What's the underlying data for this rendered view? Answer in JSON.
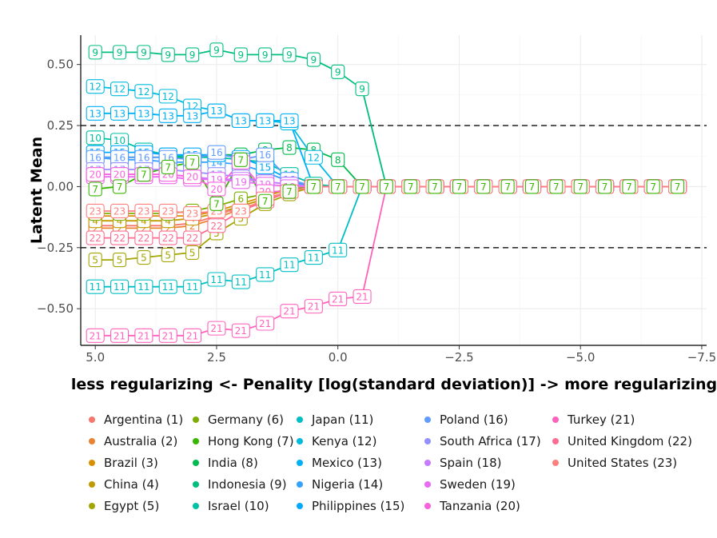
{
  "chart_data": {
    "type": "line",
    "xlabel": "less regularizing <- Penality [log(standard deviation)] -> more regularizing",
    "ylabel": "Latent Mean",
    "x_reversed": true,
    "xlim": [
      5.3,
      -7.6
    ],
    "ylim": [
      -0.65,
      0.62
    ],
    "x_ticks": [
      5,
      2.5,
      0,
      -2.5,
      -5,
      -7.5
    ],
    "x_tick_labels": [
      "5.0",
      "2.5",
      "0.0",
      "−2.5",
      "−5.0",
      "−7.5"
    ],
    "y_ticks": [
      0.5,
      0.25,
      0,
      -0.25,
      -0.5
    ],
    "y_tick_labels": [
      "0.50",
      "0.25",
      "0.00",
      "−0.25",
      "−0.50"
    ],
    "reference_lines": [
      0.25,
      -0.25
    ],
    "x": [
      5,
      4.5,
      4,
      3.5,
      3,
      2.5,
      2,
      1.5,
      1,
      0.5,
      0,
      -0.5,
      -1,
      -1.5,
      -2,
      -2.5,
      -3,
      -3.5,
      -4,
      -4.5,
      -5,
      -5.5,
      -6,
      -6.5,
      -7
    ],
    "series": [
      {
        "id": 1,
        "name": "Argentina (1)",
        "color": "#F8766D",
        "values": [
          -0.16,
          -0.16,
          -0.16,
          -0.16,
          -0.15,
          -0.12,
          -0.08,
          -0.05,
          -0.02,
          0,
          0,
          0,
          0,
          0,
          0,
          0,
          0,
          0,
          0,
          0,
          0,
          0,
          0,
          0,
          0
        ]
      },
      {
        "id": 2,
        "name": "Australia (2)",
        "color": "#EA8331",
        "values": [
          -0.17,
          -0.17,
          -0.17,
          -0.17,
          -0.16,
          -0.13,
          -0.09,
          -0.06,
          -0.02,
          0,
          0,
          0,
          0,
          0,
          0,
          0,
          0,
          0,
          0,
          0,
          0,
          0,
          0,
          0,
          0
        ]
      },
      {
        "id": 3,
        "name": "Brazil (3)",
        "color": "#D89000",
        "values": [
          -0.12,
          -0.12,
          -0.12,
          -0.12,
          -0.12,
          -0.1,
          -0.07,
          -0.04,
          -0.01,
          0,
          0,
          0,
          0,
          0,
          0,
          0,
          0,
          0,
          0,
          0,
          0,
          0,
          0,
          0,
          0
        ]
      },
      {
        "id": 4,
        "name": "China (4)",
        "color": "#C09B00",
        "values": [
          -0.14,
          -0.14,
          -0.14,
          -0.14,
          -0.13,
          -0.11,
          -0.08,
          -0.05,
          -0.02,
          0,
          0,
          0,
          0,
          0,
          0,
          0,
          0,
          0,
          0,
          0,
          0,
          0,
          0,
          0,
          0
        ]
      },
      {
        "id": 5,
        "name": "Egypt (5)",
        "color": "#A3A500",
        "values": [
          -0.3,
          -0.3,
          -0.29,
          -0.28,
          -0.27,
          -0.19,
          -0.13,
          -0.07,
          -0.03,
          0,
          0,
          0,
          0,
          0,
          0,
          0,
          0,
          0,
          0,
          0,
          0,
          0,
          0,
          0,
          0
        ]
      },
      {
        "id": 6,
        "name": "Germany (6)",
        "color": "#7CAE00",
        "values": [
          -0.11,
          -0.11,
          -0.11,
          -0.11,
          -0.1,
          -0.08,
          -0.05,
          -0.03,
          -0.01,
          0,
          0,
          0,
          0,
          0,
          0,
          0,
          0,
          0,
          0,
          0,
          0,
          0,
          0,
          0,
          0
        ]
      },
      {
        "id": 7,
        "name": "Hong Kong (7)",
        "color": "#39B600",
        "values": [
          -0.01,
          0,
          0.05,
          0.08,
          0.1,
          -0.07,
          0.11,
          -0.06,
          -0.02,
          0,
          0,
          0,
          0,
          0,
          0,
          0,
          0,
          0,
          0,
          0,
          0,
          0,
          0,
          0,
          0
        ]
      },
      {
        "id": 8,
        "name": "India (8)",
        "color": "#00BB4E",
        "values": [
          0.12,
          0.12,
          0.12,
          0.12,
          0.12,
          0.13,
          0.13,
          0.15,
          0.16,
          0.15,
          0.11,
          0,
          0,
          0,
          0,
          0,
          0,
          0,
          0,
          0,
          0,
          0,
          0,
          0,
          0
        ]
      },
      {
        "id": 9,
        "name": "Indonesia (9)",
        "color": "#00BF7D",
        "values": [
          0.55,
          0.55,
          0.55,
          0.54,
          0.54,
          0.56,
          0.54,
          0.54,
          0.54,
          0.52,
          0.47,
          0.4,
          0,
          0,
          0,
          0,
          0,
          0,
          0,
          0,
          0,
          0,
          0,
          0,
          0
        ]
      },
      {
        "id": 10,
        "name": "Israel (10)",
        "color": "#00C1A3",
        "values": [
          0.2,
          0.19,
          0.15,
          0.13,
          0.12,
          0.12,
          0.11,
          0.1,
          0.05,
          0.01,
          0,
          0,
          0,
          0,
          0,
          0,
          0,
          0,
          0,
          0,
          0,
          0,
          0,
          0,
          0
        ]
      },
      {
        "id": 11,
        "name": "Japan (11)",
        "color": "#00BFC4",
        "values": [
          -0.41,
          -0.41,
          -0.41,
          -0.41,
          -0.41,
          -0.38,
          -0.39,
          -0.36,
          -0.32,
          -0.29,
          -0.26,
          0,
          0,
          0,
          0,
          0,
          0,
          0,
          0,
          0,
          0,
          0,
          0,
          0,
          0
        ]
      },
      {
        "id": 12,
        "name": "Kenya (12)",
        "color": "#00BAE0",
        "values": [
          0.41,
          0.4,
          0.39,
          0.37,
          0.33,
          0.31,
          0.27,
          0.27,
          0.26,
          0.12,
          0,
          0,
          0,
          0,
          0,
          0,
          0,
          0,
          0,
          0,
          0,
          0,
          0,
          0,
          0
        ]
      },
      {
        "id": 13,
        "name": "Mexico (13)",
        "color": "#00B0F6",
        "values": [
          0.3,
          0.3,
          0.3,
          0.29,
          0.29,
          0.31,
          0.27,
          0.27,
          0.27,
          0,
          0,
          0,
          0,
          0,
          0,
          0,
          0,
          0,
          0,
          0,
          0,
          0,
          0,
          0,
          0
        ]
      },
      {
        "id": 14,
        "name": "Nigeria (14)",
        "color": "#35A2FF",
        "values": [
          0.12,
          0.11,
          0.11,
          0.1,
          0.1,
          0.1,
          0.09,
          0.06,
          0.02,
          0,
          0,
          0,
          0,
          0,
          0,
          0,
          0,
          0,
          0,
          0,
          0,
          0,
          0,
          0,
          0
        ]
      },
      {
        "id": 15,
        "name": "Philippines (15)",
        "color": "#00A9FF",
        "values": [
          0.14,
          0.14,
          0.14,
          0.13,
          0.13,
          0.13,
          0.12,
          0.08,
          0.03,
          0,
          0,
          0,
          0,
          0,
          0,
          0,
          0,
          0,
          0,
          0,
          0,
          0,
          0,
          0,
          0
        ]
      },
      {
        "id": 16,
        "name": "Poland (16)",
        "color": "#619CFF",
        "values": [
          0.12,
          0.12,
          0.12,
          0.12,
          0.11,
          0.14,
          0.11,
          0.13,
          0.03,
          0,
          0,
          0,
          0,
          0,
          0,
          0,
          0,
          0,
          0,
          0,
          0,
          0,
          0,
          0,
          0
        ]
      },
      {
        "id": 17,
        "name": "South Africa (17)",
        "color": "#9590FF",
        "values": [
          0.07,
          0.07,
          0.07,
          0.07,
          0.06,
          0.05,
          0.04,
          0.02,
          0.01,
          0,
          0,
          0,
          0,
          0,
          0,
          0,
          0,
          0,
          0,
          0,
          0,
          0,
          0,
          0,
          0
        ]
      },
      {
        "id": 18,
        "name": "Spain (18)",
        "color": "#C77CFF",
        "values": [
          0.05,
          0.05,
          0.05,
          0.05,
          0.04,
          0.03,
          0.03,
          0.02,
          0.01,
          0,
          0,
          0,
          0,
          0,
          0,
          0,
          0,
          0,
          0,
          0,
          0,
          0,
          0,
          0,
          0
        ]
      },
      {
        "id": 19,
        "name": "Sweden (19)",
        "color": "#E76BF3",
        "values": [
          0.04,
          0.04,
          0.04,
          0.04,
          0.03,
          0.03,
          0.02,
          0.01,
          0,
          0,
          0,
          0,
          0,
          0,
          0,
          0,
          0,
          0,
          0,
          0,
          0,
          0,
          0,
          0,
          0
        ]
      },
      {
        "id": 20,
        "name": "Tanzania (20)",
        "color": "#FA62DB",
        "values": [
          0.05,
          0.05,
          0.05,
          0.05,
          0.04,
          -0.01,
          0.1,
          -0.02,
          -0.02,
          0,
          0,
          0,
          0,
          0,
          0,
          0,
          0,
          0,
          0,
          0,
          0,
          0,
          0,
          0,
          0
        ]
      },
      {
        "id": 21,
        "name": "Turkey (21)",
        "color": "#FF62BC",
        "values": [
          -0.61,
          -0.61,
          -0.61,
          -0.61,
          -0.61,
          -0.58,
          -0.59,
          -0.56,
          -0.51,
          -0.49,
          -0.46,
          -0.45,
          0,
          0,
          0,
          0,
          0,
          0,
          0,
          0,
          0,
          0,
          0,
          0,
          0
        ]
      },
      {
        "id": 22,
        "name": "United Kingdom (22)",
        "color": "#FF6C91",
        "values": [
          -0.21,
          -0.21,
          -0.21,
          -0.21,
          -0.21,
          -0.16,
          -0.1,
          -0.06,
          -0.02,
          0,
          0,
          0,
          0,
          0,
          0,
          0,
          0,
          0,
          0,
          0,
          0,
          0,
          0,
          0,
          0
        ]
      },
      {
        "id": 23,
        "name": "United States (23)",
        "color": "#FF7F7F",
        "values": [
          -0.1,
          -0.1,
          -0.1,
          -0.1,
          -0.11,
          -0.1,
          -0.1,
          -0.05,
          -0.02,
          0,
          0,
          0,
          0,
          0,
          0,
          0,
          0,
          0,
          0,
          0,
          0,
          0,
          0,
          0,
          0
        ]
      }
    ]
  }
}
